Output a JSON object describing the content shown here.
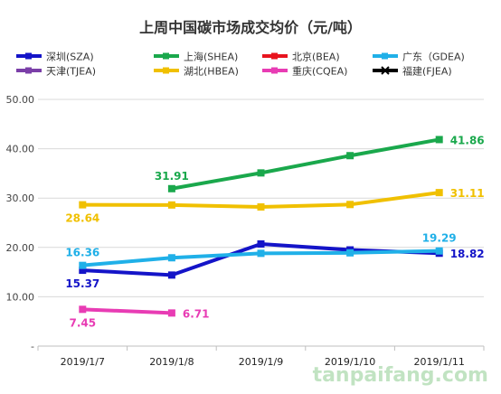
{
  "chart_data": {
    "type": "line",
    "title": "上周中国碳市场成交均价（元/吨）",
    "categories": [
      "2019/1/7",
      "2019/1/8",
      "2019/1/9",
      "2019/1/10",
      "2019/1/11"
    ],
    "y_ticks": [
      "-",
      "10.00",
      "20.00",
      "30.00",
      "40.00",
      "50.00"
    ],
    "ylim": [
      0,
      50
    ],
    "grid": "horizontal",
    "legend_position": "top",
    "series": [
      {
        "name": "深圳(SZA)",
        "color": "#1414c8",
        "values": [
          15.37,
          14.4,
          20.7,
          19.5,
          18.82
        ],
        "labels": [
          "15.37",
          null,
          null,
          null,
          "18.82"
        ]
      },
      {
        "name": "上海(SHEA)",
        "color": "#1aa84c",
        "values": [
          null,
          31.91,
          35.1,
          38.6,
          41.86
        ],
        "labels": [
          null,
          "31.91",
          null,
          null,
          "41.86"
        ]
      },
      {
        "name": "北京(BEA)",
        "color": "#e8141e",
        "values": [
          null,
          null,
          null,
          null,
          null
        ],
        "labels": [
          null,
          null,
          null,
          null,
          null
        ]
      },
      {
        "name": "广东（GDEA)",
        "color": "#20b0e8",
        "values": [
          16.36,
          17.9,
          18.8,
          18.9,
          19.29
        ],
        "labels": [
          "16.36",
          null,
          null,
          null,
          "19.29"
        ]
      },
      {
        "name": "天津(TJEA)",
        "color": "#7b3fa8",
        "values": [
          null,
          null,
          null,
          null,
          null
        ],
        "labels": [
          null,
          null,
          null,
          null,
          null
        ]
      },
      {
        "name": "湖北(HBEA)",
        "color": "#f0c000",
        "values": [
          28.64,
          28.6,
          28.2,
          28.7,
          31.11
        ],
        "labels": [
          "28.64",
          null,
          null,
          null,
          "31.11"
        ]
      },
      {
        "name": "重庆(CQEA)",
        "color": "#e83cb4",
        "values": [
          7.45,
          6.71,
          null,
          null,
          null
        ],
        "labels": [
          "7.45",
          "6.71",
          null,
          null,
          null
        ]
      },
      {
        "name": "福建(FJEA)",
        "color": "#000000",
        "values": [
          null,
          null,
          null,
          null,
          null
        ],
        "labels": [
          null,
          null,
          null,
          null,
          null
        ]
      }
    ]
  },
  "watermark": {
    "text": "tanpaifang.com"
  }
}
